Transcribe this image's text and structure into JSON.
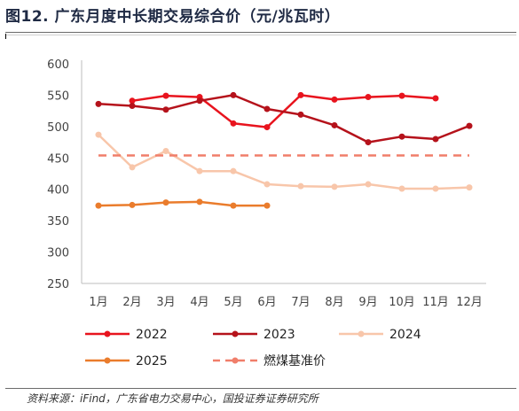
{
  "title": "图12. 广东月度中长期交易综合价（元/兆瓦时）",
  "source": "资料来源：iFind，广东省电力交易中心，国投证券证券研究所",
  "chart_data": {
    "type": "line",
    "categories": [
      "1月",
      "2月",
      "3月",
      "4月",
      "5月",
      "6月",
      "7月",
      "8月",
      "9月",
      "10月",
      "11月",
      "12月"
    ],
    "ylim": [
      250,
      600
    ],
    "yticks": [
      250,
      300,
      350,
      400,
      450,
      500,
      550,
      600
    ],
    "grid": false,
    "legend_position": "bottom",
    "series": [
      {
        "name": "2022",
        "color": "#e8141e",
        "dashed": false,
        "values": [
          null,
          541,
          549,
          547,
          505,
          499,
          550,
          543,
          547,
          549,
          545,
          null
        ]
      },
      {
        "name": "2023",
        "color": "#b5121b",
        "dashed": false,
        "values": [
          536,
          533,
          527,
          541,
          550,
          528,
          519,
          502,
          475,
          484,
          480,
          501
        ]
      },
      {
        "name": "2024",
        "color": "#f8c6aa",
        "dashed": false,
        "values": [
          487,
          435,
          461,
          429,
          429,
          408,
          405,
          404,
          408,
          401,
          401,
          403
        ]
      },
      {
        "name": "2025",
        "color": "#ea7c2c",
        "dashed": false,
        "values": [
          374,
          375,
          379,
          380,
          374,
          374,
          null,
          null,
          null,
          null,
          null,
          null
        ]
      },
      {
        "name": "燃煤基准价",
        "color": "#f07e6a",
        "dashed": true,
        "values": [
          454,
          454,
          454,
          454,
          454,
          454,
          454,
          454,
          454,
          454,
          454,
          454
        ]
      }
    ]
  }
}
